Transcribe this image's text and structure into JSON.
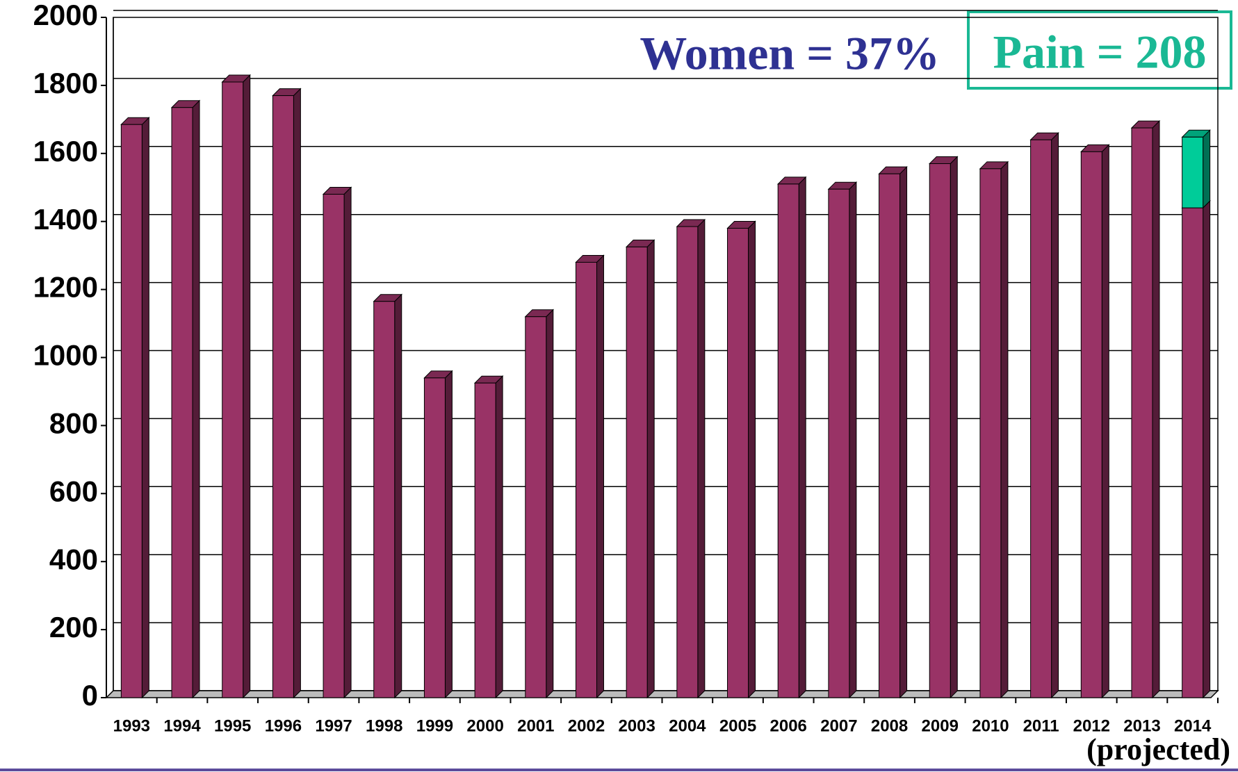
{
  "chart_data": {
    "type": "bar3d_stacked",
    "annotations": [
      "Women = 37%",
      "Pain = 208",
      "(projected)"
    ],
    "categories": [
      "1993",
      "1994",
      "1995",
      "1996",
      "1997",
      "1998",
      "1999",
      "2000",
      "2001",
      "2002",
      "2003",
      "2004",
      "2005",
      "2006",
      "2007",
      "2008",
      "2009",
      "2010",
      "2011",
      "2012",
      "2013",
      "2014"
    ],
    "series": [
      {
        "color": "#993366",
        "values": [
          1685,
          1735,
          1810,
          1770,
          1480,
          1165,
          940,
          925,
          1120,
          1280,
          1325,
          1385,
          1380,
          1510,
          1495,
          1540,
          1570,
          1555,
          1640,
          1605,
          1675,
          1440
        ]
      },
      {
        "color": "#00cc99",
        "values": [
          null,
          null,
          null,
          null,
          null,
          null,
          null,
          null,
          null,
          null,
          null,
          null,
          null,
          null,
          null,
          null,
          null,
          null,
          null,
          null,
          null,
          208
        ]
      }
    ],
    "ylim": [
      0,
      2000
    ],
    "yticks": [
      0,
      200,
      400,
      600,
      800,
      1000,
      1200,
      1400,
      1600,
      1800,
      2000
    ],
    "grid": true
  }
}
